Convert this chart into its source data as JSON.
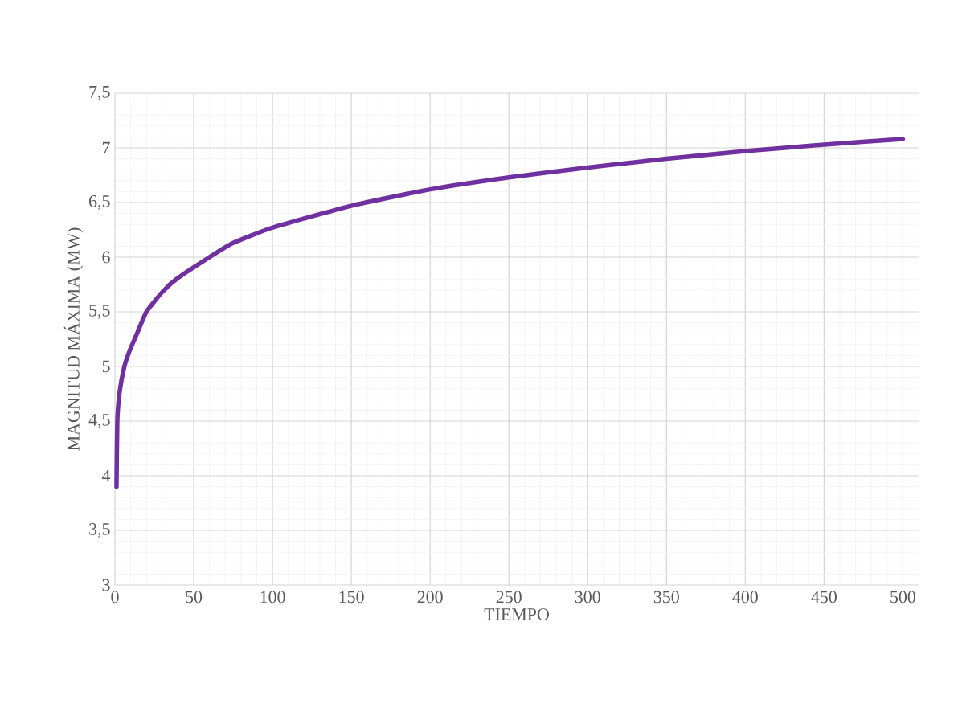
{
  "chart_data": {
    "type": "line",
    "xlabel": "TIEMPO",
    "ylabel": "MAGNITUD MÁXIMA (MW)",
    "x": [
      1,
      1.5,
      3,
      6,
      9.5,
      14,
      20,
      30,
      40,
      60,
      75,
      100,
      150,
      200,
      250,
      300,
      350,
      400,
      450,
      500
    ],
    "series": [
      {
        "color": "#7030a0",
        "values": [
          3.9,
          4.5,
          4.77,
          5.0,
          5.15,
          5.3,
          5.5,
          5.68,
          5.81,
          6.0,
          6.13,
          6.27,
          6.47,
          6.62,
          6.73,
          6.82,
          6.9,
          6.97,
          7.03,
          7.08
        ]
      }
    ],
    "xlim": [
      0,
      510
    ],
    "ylim": [
      3,
      7.5
    ],
    "xticks": [
      0,
      50,
      100,
      150,
      200,
      250,
      300,
      350,
      400,
      450,
      500
    ],
    "yticks": [
      3,
      {
        "value": 3.5,
        "label": "3,5"
      },
      4,
      {
        "value": 4.5,
        "label": "4,5"
      },
      5,
      {
        "value": 5.5,
        "label": "5,5"
      },
      6,
      {
        "value": 6.5,
        "label": "6,5"
      },
      7,
      {
        "value": 7.5,
        "label": "7,5"
      }
    ],
    "grid": true,
    "marker": "none",
    "line_style": "solid"
  }
}
